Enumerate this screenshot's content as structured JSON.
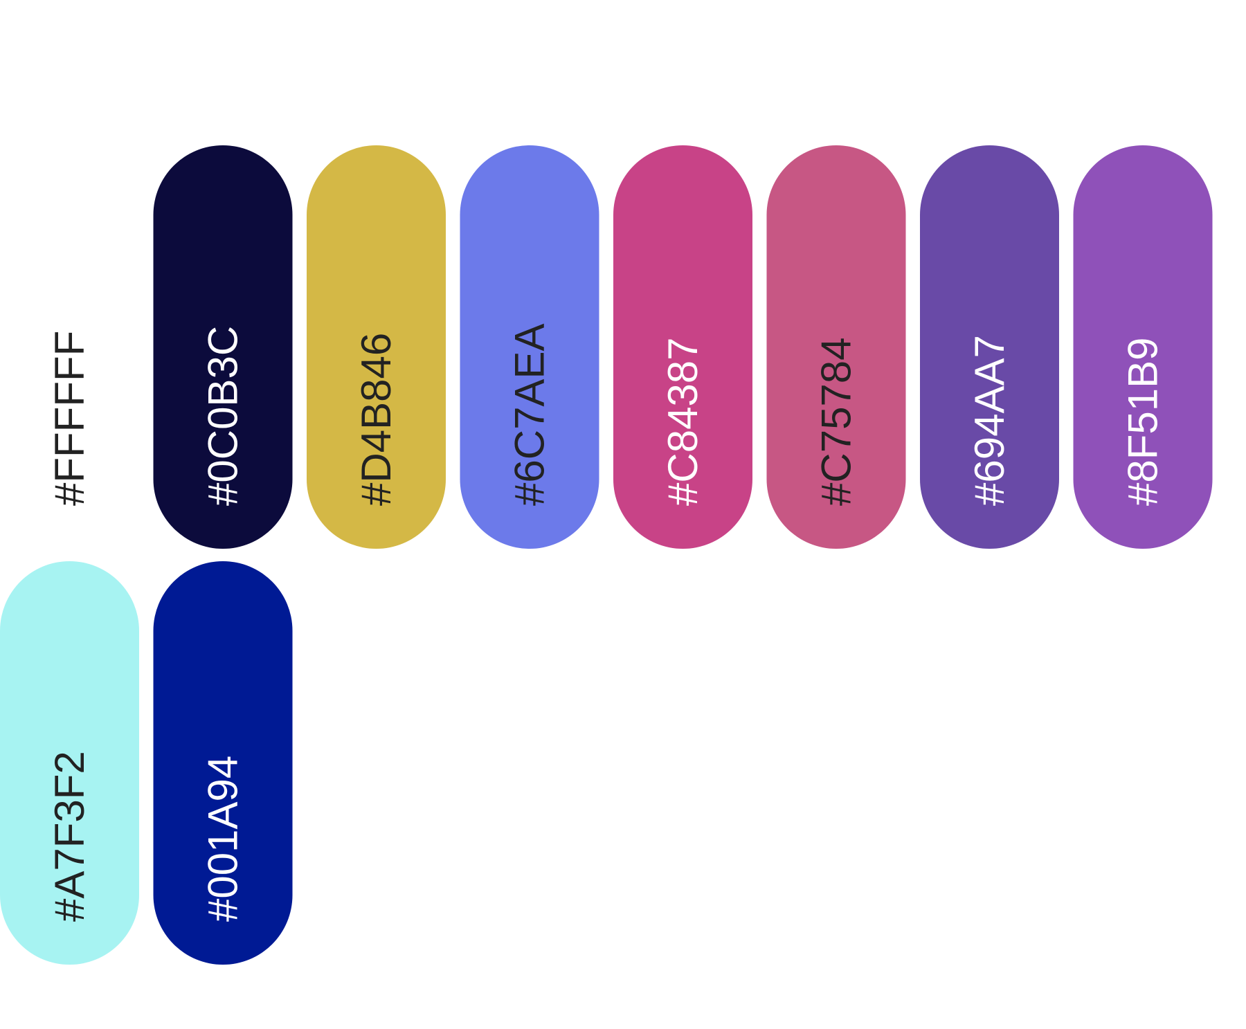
{
  "palette": {
    "rows": [
      [
        {
          "label": "#FFFFFF"
        },
        {
          "label": "#0C0B3C"
        },
        {
          "label": "#D4B846"
        },
        {
          "label": "#6C7AEA"
        },
        {
          "label": "#C84387"
        },
        {
          "label": "#C75784"
        },
        {
          "label": "#694AA7"
        },
        {
          "label": "#8F51B9"
        }
      ],
      [
        {
          "label": "#A7F3F2"
        },
        {
          "label": "#001A94"
        }
      ]
    ]
  }
}
